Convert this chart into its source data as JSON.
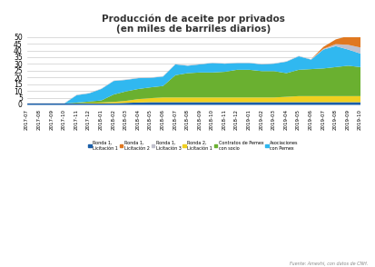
{
  "title": "Producción de aceite por privados\n(en miles de barriles diarios)",
  "ylim": [
    0,
    50
  ],
  "yticks": [
    0,
    5,
    10,
    15,
    20,
    25,
    30,
    35,
    40,
    45,
    50
  ],
  "source": "Fuente: Amexhi, con datos de CNH.",
  "colors": {
    "ronda1_lic1": "#1a5ea8",
    "ronda1_lic2": "#e07820",
    "ronda1_lic3": "#c0c0cc",
    "ronda2_lic1": "#f0d020",
    "contratos_pemex": "#6ab030",
    "asoc_pemex": "#30b8f0"
  },
  "legend_labels": [
    "Ronda 1,\nLicitación 1",
    "Ronda 1,\nLicitación 2",
    "Ronda 1,\nLicitación 3",
    "Ronda 2,\nLicitación 1",
    "Contratos de Pemex\ncon socio",
    "Asociaciones\ncon Pemex"
  ],
  "dates": [
    "2017-07",
    "2017-08",
    "2017-09",
    "2017-10",
    "2017-11",
    "2017-12",
    "2018-01",
    "2018-02",
    "2018-03",
    "2018-04",
    "2018-05",
    "2018-06",
    "2018-07",
    "2018-08",
    "2018-09",
    "2018-10",
    "2018-11",
    "2018-12",
    "2019-01",
    "2019-02",
    "2019-03",
    "2019-04",
    "2019-05",
    "2019-06",
    "2019-07",
    "2019-08",
    "2019-09",
    "2019-10"
  ],
  "ronda1_lic1": [
    1.0,
    1.0,
    1.0,
    1.0,
    1.0,
    1.0,
    1.0,
    1.2,
    1.5,
    1.8,
    2.0,
    2.0,
    2.0,
    2.0,
    2.0,
    2.0,
    2.0,
    2.0,
    2.0,
    2.0,
    2.0,
    2.0,
    2.0,
    2.0,
    2.0,
    2.0,
    2.0,
    2.0
  ],
  "ronda1_lic3": [
    0.3,
    0.3,
    0.3,
    0.3,
    0.3,
    0.3,
    0.3,
    0.3,
    0.3,
    0.3,
    0.3,
    0.3,
    0.3,
    0.3,
    0.3,
    0.3,
    0.3,
    0.3,
    0.3,
    0.3,
    0.3,
    0.3,
    0.3,
    0.3,
    0.5,
    1.5,
    3.5,
    4.5
  ],
  "ronda2_lic1": [
    0.0,
    0.0,
    0.0,
    0.0,
    0.2,
    0.5,
    0.8,
    1.0,
    1.5,
    2.5,
    3.0,
    3.5,
    3.5,
    3.5,
    3.5,
    3.5,
    3.5,
    3.5,
    3.5,
    3.5,
    3.5,
    4.0,
    4.5,
    4.5,
    4.5,
    4.5,
    4.5,
    4.5
  ],
  "contratos_pemex": [
    0.0,
    0.0,
    0.0,
    0.0,
    0.5,
    1.0,
    1.5,
    5.5,
    7.0,
    7.5,
    8.0,
    8.5,
    16.5,
    18.0,
    18.5,
    18.5,
    19.0,
    20.5,
    20.5,
    19.5,
    19.5,
    17.5,
    19.5,
    20.0,
    20.5,
    21.5,
    22.5,
    21.5
  ],
  "asoc_pemex": [
    0.0,
    0.0,
    0.0,
    0.0,
    5.5,
    6.0,
    8.5,
    10.0,
    8.5,
    8.0,
    7.0,
    7.0,
    8.0,
    5.5,
    6.0,
    7.0,
    6.0,
    5.0,
    5.0,
    5.0,
    5.5,
    8.5,
    10.0,
    7.0,
    14.0,
    15.5,
    12.0,
    10.0
  ],
  "ronda1_lic2": [
    0.0,
    0.0,
    0.0,
    0.0,
    0.0,
    0.0,
    0.0,
    0.0,
    0.0,
    0.0,
    0.0,
    0.0,
    0.0,
    0.0,
    0.0,
    0.0,
    0.0,
    0.0,
    0.0,
    0.0,
    0.0,
    0.0,
    0.0,
    0.0,
    1.5,
    3.5,
    6.5,
    9.5
  ]
}
